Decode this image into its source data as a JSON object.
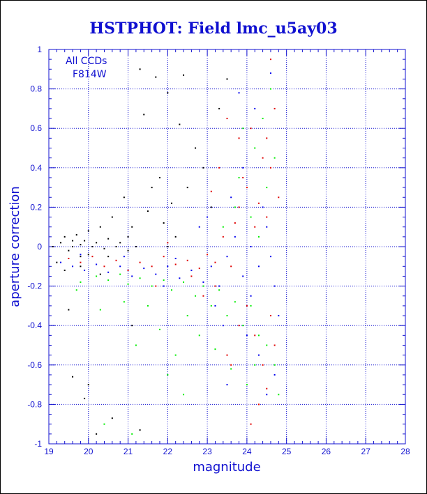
{
  "chart_data": {
    "type": "scatter",
    "title": "HSTPHOT: Field lmc_u5ay03",
    "xlabel": "magnitude",
    "ylabel": "aperture correction",
    "xlim": [
      19,
      28
    ],
    "ylim": [
      -1,
      1
    ],
    "xticks": [
      "19",
      "20",
      "21",
      "22",
      "23",
      "24",
      "25",
      "26",
      "27",
      "28"
    ],
    "yticks": [
      "-1",
      "-0.8",
      "-0.6",
      "-0.4",
      "-0.2",
      "0",
      "0.2",
      "0.4",
      "0.6",
      "0.8",
      "1"
    ],
    "grid": true,
    "annotations": [
      "All CCDs",
      "F814W"
    ],
    "colors": {
      "axis": "#1010d0",
      "grid": "#1010d0"
    },
    "series": [
      {
        "color": "#000000",
        "points": [
          [
            19.1,
            0.0
          ],
          [
            19.3,
            0.02
          ],
          [
            19.4,
            0.05
          ],
          [
            19.5,
            -0.02
          ],
          [
            19.6,
            0.0
          ],
          [
            19.6,
            0.03
          ],
          [
            19.7,
            0.06
          ],
          [
            19.8,
            -0.05
          ],
          [
            19.8,
            0.01
          ],
          [
            19.9,
            0.03
          ],
          [
            20.0,
            0.08
          ],
          [
            20.0,
            -0.04
          ],
          [
            20.1,
            0.0
          ],
          [
            20.2,
            0.02
          ],
          [
            20.3,
            0.1
          ],
          [
            20.4,
            -0.01
          ],
          [
            20.5,
            0.04
          ],
          [
            20.6,
            0.15
          ],
          [
            20.7,
            0.0
          ],
          [
            20.8,
            0.02
          ],
          [
            20.9,
            0.25
          ],
          [
            21.0,
            0.05
          ],
          [
            21.1,
            0.1
          ],
          [
            21.2,
            0.0
          ],
          [
            21.3,
            0.9
          ],
          [
            21.4,
            0.67
          ],
          [
            21.5,
            0.18
          ],
          [
            21.6,
            0.3
          ],
          [
            21.7,
            0.86
          ],
          [
            21.8,
            0.35
          ],
          [
            21.9,
            0.12
          ],
          [
            22.0,
            0.78
          ],
          [
            22.1,
            0.22
          ],
          [
            22.2,
            0.05
          ],
          [
            22.3,
            0.62
          ],
          [
            22.4,
            0.87
          ],
          [
            22.5,
            0.3
          ],
          [
            22.7,
            0.5
          ],
          [
            22.9,
            0.4
          ],
          [
            23.1,
            0.2
          ],
          [
            23.3,
            0.7
          ],
          [
            23.5,
            0.85
          ],
          [
            20.2,
            -0.95
          ],
          [
            20.6,
            -0.87
          ],
          [
            21.3,
            -0.93
          ],
          [
            19.6,
            -0.66
          ],
          [
            19.5,
            -0.32
          ],
          [
            20.0,
            -0.7
          ],
          [
            19.9,
            -0.77
          ],
          [
            21.1,
            -0.4
          ],
          [
            19.8,
            -0.1
          ],
          [
            20.5,
            -0.05
          ],
          [
            21.0,
            -0.02
          ],
          [
            22.0,
            0.0
          ],
          [
            19.2,
            -0.08
          ],
          [
            19.4,
            -0.12
          ],
          [
            20.3,
            -0.14
          ]
        ]
      },
      {
        "color": "#e00000",
        "points": [
          [
            19.5,
            -0.06
          ],
          [
            19.8,
            -0.08
          ],
          [
            20.1,
            -0.05
          ],
          [
            20.4,
            -0.1
          ],
          [
            20.7,
            -0.07
          ],
          [
            21.0,
            -0.12
          ],
          [
            21.3,
            -0.08
          ],
          [
            21.6,
            -0.1
          ],
          [
            21.9,
            -0.05
          ],
          [
            22.2,
            -0.09
          ],
          [
            22.5,
            -0.07
          ],
          [
            22.8,
            -0.11
          ],
          [
            23.0,
            -0.04
          ],
          [
            23.2,
            -0.08
          ],
          [
            23.4,
            0.05
          ],
          [
            23.6,
            -0.1
          ],
          [
            23.7,
            0.12
          ],
          [
            23.8,
            0.2
          ],
          [
            23.9,
            0.35
          ],
          [
            24.0,
            0.3
          ],
          [
            24.1,
            0.6
          ],
          [
            24.2,
            0.1
          ],
          [
            24.3,
            0.22
          ],
          [
            24.4,
            0.45
          ],
          [
            24.5,
            0.15
          ],
          [
            24.6,
            0.95
          ],
          [
            24.7,
            0.7
          ],
          [
            24.8,
            0.25
          ],
          [
            23.5,
            0.65
          ],
          [
            23.8,
            0.55
          ],
          [
            23.3,
            0.4
          ],
          [
            23.1,
            0.28
          ],
          [
            24.0,
            -0.3
          ],
          [
            24.2,
            -0.45
          ],
          [
            24.4,
            -0.6
          ],
          [
            24.5,
            -0.72
          ],
          [
            24.6,
            -0.35
          ],
          [
            24.7,
            -0.5
          ],
          [
            24.3,
            -0.8
          ],
          [
            23.8,
            -0.4
          ],
          [
            23.5,
            -0.55
          ],
          [
            23.2,
            -0.2
          ],
          [
            22.6,
            -0.15
          ],
          [
            22.9,
            -0.25
          ],
          [
            23.6,
            -0.6
          ],
          [
            24.1,
            -0.9
          ],
          [
            24.6,
            0.4
          ],
          [
            24.5,
            0.55
          ],
          [
            22.0,
            0.02
          ],
          [
            21.7,
            -0.2
          ]
        ]
      },
      {
        "color": "#0000ee",
        "points": [
          [
            19.3,
            -0.08
          ],
          [
            19.6,
            -0.1
          ],
          [
            19.9,
            -0.12
          ],
          [
            20.2,
            -0.09
          ],
          [
            20.5,
            -0.13
          ],
          [
            20.8,
            -0.1
          ],
          [
            21.1,
            -0.15
          ],
          [
            21.4,
            -0.11
          ],
          [
            21.7,
            -0.14
          ],
          [
            22.0,
            -0.1
          ],
          [
            22.3,
            -0.16
          ],
          [
            22.6,
            -0.12
          ],
          [
            22.9,
            -0.18
          ],
          [
            23.1,
            -0.1
          ],
          [
            23.3,
            -0.2
          ],
          [
            23.5,
            -0.05
          ],
          [
            23.7,
            0.05
          ],
          [
            23.9,
            -0.15
          ],
          [
            24.1,
            0.0
          ],
          [
            24.3,
            -0.1
          ],
          [
            24.5,
            0.1
          ],
          [
            24.7,
            -0.2
          ],
          [
            23.2,
            -0.3
          ],
          [
            23.6,
            0.25
          ],
          [
            23.9,
            0.4
          ],
          [
            24.2,
            0.7
          ],
          [
            24.4,
            0.2
          ],
          [
            24.6,
            -0.05
          ],
          [
            24.8,
            -0.35
          ],
          [
            22.8,
            0.1
          ],
          [
            23.0,
            0.15
          ],
          [
            23.4,
            -0.4
          ],
          [
            24.0,
            -0.45
          ],
          [
            24.3,
            -0.55
          ],
          [
            24.5,
            -0.75
          ],
          [
            24.7,
            -0.65
          ],
          [
            22.2,
            -0.06
          ],
          [
            21.9,
            -0.2
          ],
          [
            20.9,
            -0.05
          ],
          [
            19.8,
            -0.04
          ],
          [
            23.8,
            0.78
          ],
          [
            24.6,
            0.88
          ],
          [
            23.5,
            -0.7
          ],
          [
            24.1,
            -0.25
          ]
        ]
      },
      {
        "color": "#00ee00",
        "points": [
          [
            19.8,
            -0.18
          ],
          [
            20.2,
            -0.15
          ],
          [
            20.5,
            -0.17
          ],
          [
            20.8,
            -0.14
          ],
          [
            21.0,
            -0.19
          ],
          [
            21.3,
            -0.16
          ],
          [
            21.6,
            -0.2
          ],
          [
            21.9,
            -0.17
          ],
          [
            22.1,
            -0.22
          ],
          [
            22.4,
            -0.18
          ],
          [
            22.7,
            -0.25
          ],
          [
            22.9,
            -0.2
          ],
          [
            23.1,
            -0.3
          ],
          [
            23.3,
            -0.22
          ],
          [
            23.5,
            -0.35
          ],
          [
            23.7,
            -0.28
          ],
          [
            23.9,
            -0.4
          ],
          [
            24.1,
            -0.3
          ],
          [
            24.3,
            -0.45
          ],
          [
            24.5,
            -0.5
          ],
          [
            24.7,
            -0.6
          ],
          [
            24.8,
            -0.75
          ],
          [
            21.8,
            -0.42
          ],
          [
            22.2,
            -0.55
          ],
          [
            22.5,
            -0.35
          ],
          [
            22.8,
            -0.45
          ],
          [
            23.2,
            -0.52
          ],
          [
            23.6,
            -0.62
          ],
          [
            24.0,
            -0.7
          ],
          [
            21.5,
            -0.3
          ],
          [
            20.9,
            -0.28
          ],
          [
            20.3,
            -0.32
          ],
          [
            22.0,
            -0.65
          ],
          [
            23.4,
            0.1
          ],
          [
            23.7,
            0.2
          ],
          [
            23.9,
            0.6
          ],
          [
            24.2,
            0.5
          ],
          [
            24.4,
            0.65
          ],
          [
            24.6,
            0.8
          ],
          [
            24.1,
            0.15
          ],
          [
            23.8,
            0.35
          ],
          [
            24.3,
            0.05
          ],
          [
            24.5,
            0.3
          ],
          [
            24.7,
            0.45
          ],
          [
            21.1,
            -0.95
          ],
          [
            20.4,
            -0.9
          ],
          [
            22.4,
            -0.75
          ],
          [
            24.2,
            -0.6
          ],
          [
            19.7,
            -0.22
          ],
          [
            21.2,
            -0.5
          ]
        ]
      }
    ]
  }
}
